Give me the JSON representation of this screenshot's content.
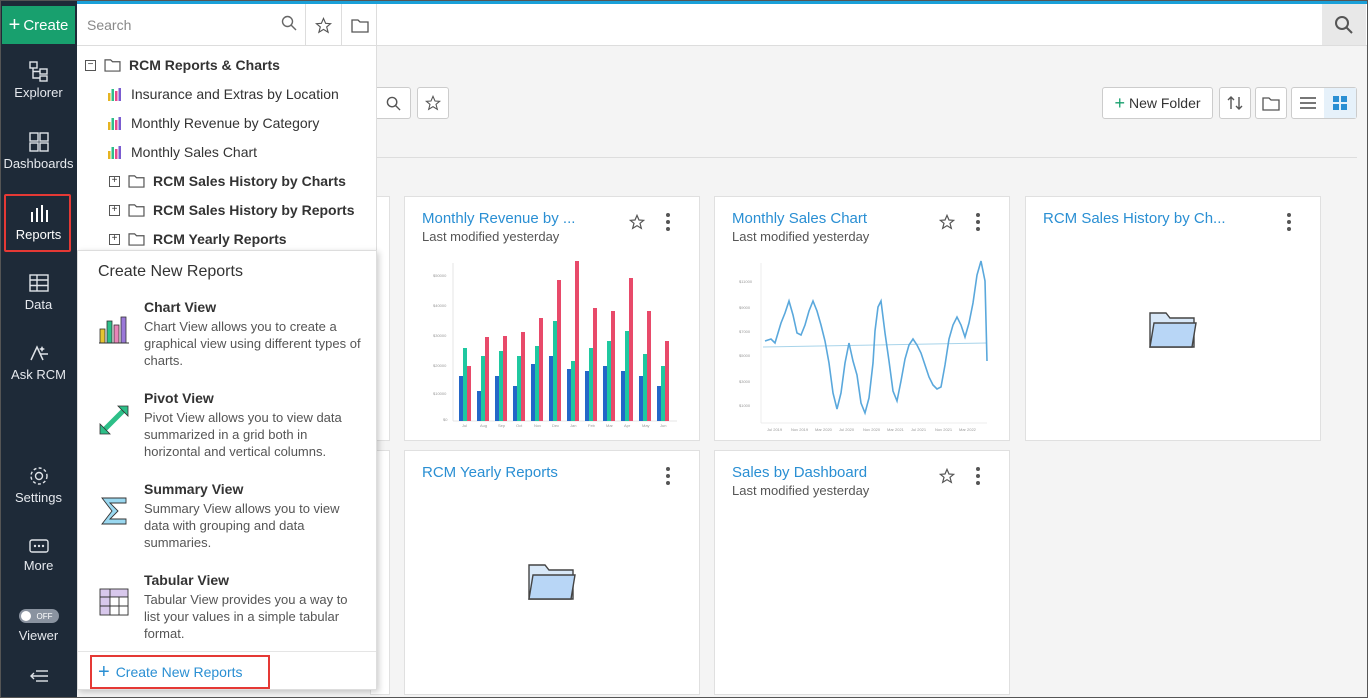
{
  "nav": {
    "create_label": "Create",
    "items": [
      {
        "label": "Explorer",
        "icon": "explorer-icon"
      },
      {
        "label": "Dashboards",
        "icon": "dashboards-icon"
      },
      {
        "label": "Reports",
        "icon": "reports-icon"
      },
      {
        "label": "Data",
        "icon": "data-icon"
      },
      {
        "label": "Ask RCM",
        "icon": "ask-rcm-icon"
      },
      {
        "label": "Settings",
        "icon": "gear-icon"
      },
      {
        "label": "More",
        "icon": "more-icon"
      },
      {
        "label": "Viewer",
        "icon": "toggle-icon"
      }
    ],
    "viewer_toggle_text": "OFF",
    "collapse_icon": "collapse-menu-icon"
  },
  "tree": {
    "search_placeholder": "Search",
    "root": "RCM Reports & Charts",
    "items": [
      {
        "label": "Insurance and Extras by Location",
        "type": "chart"
      },
      {
        "label": "Monthly Revenue by Category",
        "type": "chart"
      },
      {
        "label": "Monthly Sales Chart",
        "type": "chart"
      }
    ],
    "folders": [
      {
        "label": "RCM Sales History by Charts"
      },
      {
        "label": "RCM Sales History by Reports"
      },
      {
        "label": "RCM Yearly Reports"
      }
    ]
  },
  "popup": {
    "title": "Create New Reports",
    "options": [
      {
        "name": "Chart View",
        "desc": "Chart View allows you to create a graphical view using different types of charts."
      },
      {
        "name": "Pivot View",
        "desc": "Pivot View allows you to view data summarized in a grid both in horizontal and vertical columns."
      },
      {
        "name": "Summary View",
        "desc": "Summary View allows you to view data with grouping and data summaries."
      },
      {
        "name": "Tabular View",
        "desc": "Tabular View provides you a way to list your values in a simple tabular format."
      }
    ],
    "footer_link": "Create New Reports"
  },
  "toolbar": {
    "new_folder": "New Folder"
  },
  "cards": [
    {
      "title": "Monthly Revenue by ...",
      "subtitle": "Last modified yesterday",
      "kind": "bar-chart"
    },
    {
      "title": "Monthly Sales Chart",
      "subtitle": "Last modified yesterday",
      "kind": "line-chart"
    },
    {
      "title": "RCM Sales History by Ch...",
      "subtitle": "",
      "kind": "folder"
    },
    {
      "title": "RCM Yearly Reports",
      "subtitle": "",
      "kind": "folder"
    },
    {
      "title": "Sales by Dashboard",
      "subtitle": "Last modified yesterday",
      "kind": "empty"
    }
  ],
  "colors": {
    "accent": "#18a06e",
    "link": "#2a8fd3",
    "nav_bg": "#1e2a38",
    "highlight": "#e53935"
  }
}
